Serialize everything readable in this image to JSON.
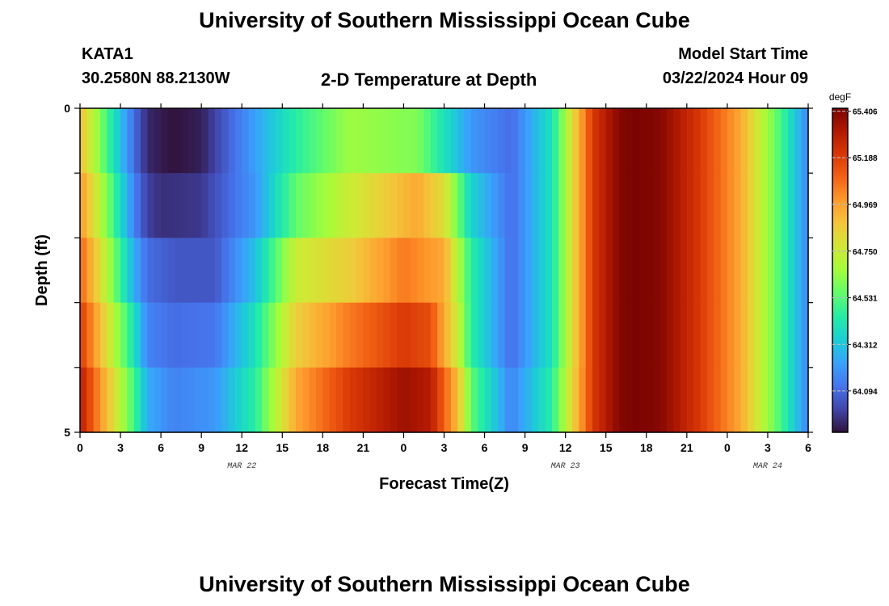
{
  "header": {
    "title": "University of Southern Mississippi Ocean Cube",
    "station": "KATA1",
    "coords": "30.2580N  88.2130W",
    "chart_title": "2-D Temperature at Depth",
    "model_label": "Model Start Time",
    "model_time": "03/22/2024 Hour 09"
  },
  "footer": {
    "title": "University of Southern Mississippi Ocean Cube"
  },
  "chart_data": {
    "type": "heatmap",
    "title": "2-D Temperature at Depth",
    "xlabel": "Forecast Time(Z)",
    "ylabel": "Depth (ft)",
    "x_tick_labels": [
      "0",
      "3",
      "6",
      "9",
      "12",
      "15",
      "18",
      "21",
      "0",
      "3",
      "6",
      "9",
      "12",
      "15",
      "18",
      "21",
      "0",
      "3",
      "6"
    ],
    "date_labels": [
      {
        "text": "MAR 22",
        "at_hour": 12
      },
      {
        "text": "MAR 23",
        "at_hour": 36
      },
      {
        "text": "MAR 24",
        "at_hour": 51
      }
    ],
    "x_range_hours": [
      0,
      54
    ],
    "y_range": [
      0,
      5
    ],
    "y_tick_labels": [
      "0",
      "5"
    ],
    "colorbar": {
      "unit": "degF",
      "min": 63.9,
      "max": 65.42,
      "tick_labels": [
        "65.406",
        "65.188",
        "64.969",
        "64.750",
        "64.531",
        "64.312",
        "64.094"
      ],
      "colors": [
        "#30123b",
        "#4145ab",
        "#4675ed",
        "#39a2fc",
        "#1bcfd4",
        "#24eca6",
        "#61fc6c",
        "#a4fc3b",
        "#d1e834",
        "#f3c63a",
        "#fe9b2d",
        "#f36315",
        "#d93806",
        "#b11901",
        "#7a0402"
      ]
    },
    "rows": [
      {
        "depth_index": 0,
        "hours": [
          0,
          2,
          4,
          5,
          6,
          7,
          9,
          12,
          16,
          20,
          25,
          27,
          29,
          32,
          35,
          38,
          40,
          41,
          43,
          46,
          49,
          52,
          54
        ],
        "values": [
          64.9,
          64.5,
          64.1,
          63.95,
          63.92,
          63.9,
          63.93,
          64.15,
          64.45,
          64.65,
          64.6,
          64.4,
          64.2,
          64.1,
          64.4,
          65.2,
          65.4,
          65.42,
          65.4,
          65.2,
          64.95,
          64.5,
          64.15
        ]
      },
      {
        "depth_index": 1,
        "hours": [
          0,
          2,
          4,
          5,
          6,
          9,
          13,
          16,
          20,
          25,
          27,
          29,
          32,
          35,
          38,
          40,
          41,
          43,
          46,
          49,
          52,
          54
        ],
        "values": [
          65.0,
          64.6,
          64.15,
          64.0,
          63.96,
          63.98,
          64.2,
          64.55,
          64.75,
          64.95,
          64.8,
          64.35,
          64.1,
          64.4,
          65.2,
          65.4,
          65.42,
          65.4,
          65.2,
          64.95,
          64.5,
          64.15
        ]
      },
      {
        "depth_index": 2,
        "hours": [
          0,
          2,
          4,
          5,
          7,
          10,
          13,
          16,
          20,
          24,
          27,
          29,
          32,
          35,
          38,
          40,
          41,
          43,
          46,
          49,
          52,
          54
        ],
        "values": [
          65.1,
          64.7,
          64.25,
          64.1,
          64.05,
          64.05,
          64.3,
          64.75,
          64.85,
          65.05,
          64.95,
          64.45,
          64.1,
          64.4,
          65.2,
          65.4,
          65.42,
          65.4,
          65.2,
          64.95,
          64.5,
          64.15
        ]
      },
      {
        "depth_index": 3,
        "hours": [
          0,
          2,
          4,
          5,
          7,
          10,
          13,
          16,
          20,
          24,
          26,
          28,
          29,
          32,
          35,
          38,
          40,
          41,
          43,
          46,
          49,
          52,
          54
        ],
        "values": [
          65.2,
          64.8,
          64.4,
          64.15,
          64.1,
          64.12,
          64.4,
          64.85,
          65.05,
          65.2,
          65.15,
          64.75,
          64.45,
          64.1,
          64.4,
          65.2,
          65.4,
          65.42,
          65.4,
          65.2,
          64.95,
          64.5,
          64.15
        ]
      },
      {
        "depth_index": 4,
        "hours": [
          0,
          2,
          4,
          5,
          7,
          10,
          13,
          16,
          20,
          24,
          26,
          28,
          29,
          32,
          35,
          38,
          40,
          41,
          43,
          46,
          49,
          52,
          54
        ],
        "values": [
          65.3,
          64.9,
          64.5,
          64.25,
          64.15,
          64.2,
          64.45,
          64.95,
          65.2,
          65.35,
          65.3,
          64.9,
          64.55,
          64.15,
          64.45,
          65.2,
          65.4,
          65.42,
          65.4,
          65.2,
          64.95,
          64.5,
          64.15
        ]
      }
    ]
  }
}
